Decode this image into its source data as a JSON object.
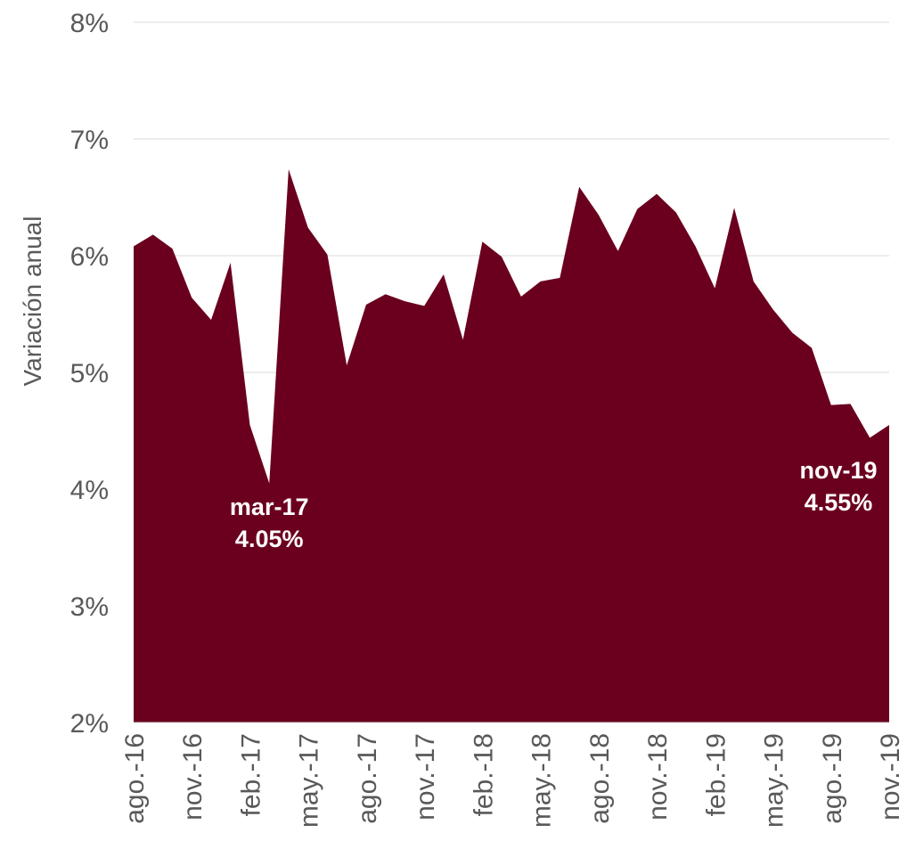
{
  "chart_data": {
    "type": "area",
    "ylabel": "Variación anual",
    "ylim": [
      2,
      8
    ],
    "y_ticks": [
      "2%",
      "3%",
      "4%",
      "5%",
      "6%",
      "7%",
      "8%"
    ],
    "y_tick_values": [
      2,
      3,
      4,
      5,
      6,
      7,
      8
    ],
    "grid": true,
    "x_tick_labels": [
      "ago.-16",
      "nov.-16",
      "feb.-17",
      "may.-17",
      "ago.-17",
      "nov.-17",
      "feb.-18",
      "may.-18",
      "ago.-18",
      "nov.-18",
      "feb.-19",
      "may.-19",
      "ago.-19",
      "nov.-19"
    ],
    "x": [
      "ago.-16",
      "sep.-16",
      "oct.-16",
      "nov.-16",
      "dic.-16",
      "ene.-17",
      "feb.-17",
      "mar.-17",
      "abr.-17",
      "may.-17",
      "jun.-17",
      "jul.-17",
      "ago.-17",
      "sep.-17",
      "oct.-17",
      "nov.-17",
      "dic.-17",
      "ene.-18",
      "feb.-18",
      "mar.-18",
      "abr.-18",
      "may.-18",
      "jun.-18",
      "jul.-18",
      "ago.-18",
      "sep.-18",
      "oct.-18",
      "nov.-18",
      "dic.-18",
      "ene.-19",
      "feb.-19",
      "mar.-19",
      "abr.-19",
      "may.-19",
      "jun.-19",
      "jul.-19",
      "ago.-19",
      "sep.-19",
      "oct.-19",
      "nov.-19"
    ],
    "series": [
      {
        "values": [
          6.08,
          6.18,
          6.06,
          5.64,
          5.45,
          5.94,
          4.55,
          4.05,
          6.74,
          6.24,
          6.01,
          5.06,
          5.58,
          5.67,
          5.61,
          5.57,
          5.84,
          5.28,
          6.12,
          5.99,
          5.65,
          5.78,
          5.81,
          6.59,
          6.35,
          6.04,
          6.4,
          6.53,
          6.37,
          6.08,
          5.72,
          6.41,
          5.78,
          5.54,
          5.34,
          5.21,
          4.72,
          4.73,
          4.44,
          4.55
        ],
        "color": "#6b001e"
      }
    ],
    "annotations": [
      {
        "name": "annotation-mar-17",
        "label": "mar-17",
        "value": "4.05%",
        "x": "mar.-17",
        "y": 4.05
      },
      {
        "name": "annotation-nov-19",
        "label": "nov-19",
        "value": "4.55%",
        "x": "nov.-19",
        "y": 4.55
      }
    ]
  }
}
